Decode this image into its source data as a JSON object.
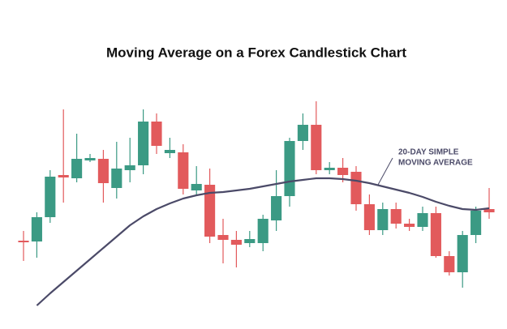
{
  "chart_data": {
    "type": "candlestick",
    "title": "Moving Average on a Forex Candlestick Chart",
    "annotation": [
      "20-DAY SIMPLE",
      "MOVING AVERAGE"
    ],
    "x": [
      0,
      1,
      2,
      3,
      4,
      5,
      6,
      7,
      8,
      9,
      10,
      11,
      12,
      13,
      14,
      15,
      16,
      17,
      18,
      19,
      20,
      21,
      22,
      23,
      24,
      25,
      26,
      27,
      28,
      29,
      30,
      31,
      32,
      33,
      34,
      35
    ],
    "xlim": [
      -0.5,
      35.5
    ],
    "ylim": [
      0,
      400
    ],
    "up_color": "#3b9a84",
    "down_color": "#e25a5c",
    "open": [
      103,
      102,
      132,
      184,
      180,
      202,
      204,
      168,
      190,
      196,
      250,
      211,
      212,
      165,
      172,
      110,
      104,
      100,
      100,
      128,
      158,
      226,
      246,
      190,
      193,
      188,
      148,
      116,
      142,
      124,
      120,
      137,
      84,
      64,
      110,
      142
    ],
    "close": [
      101,
      132,
      182,
      181,
      204,
      205,
      174,
      192,
      196,
      250,
      220,
      215,
      167,
      173,
      108,
      104,
      98,
      105,
      130,
      158,
      226,
      246,
      190,
      193,
      184,
      148,
      116,
      142,
      124,
      120,
      137,
      84,
      64,
      110,
      140,
      138
    ],
    "high": [
      115,
      138,
      190,
      265,
      235,
      210,
      215,
      225,
      230,
      265,
      260,
      230,
      222,
      195,
      192,
      130,
      115,
      115,
      135,
      190,
      230,
      260,
      275,
      200,
      205,
      195,
      160,
      150,
      150,
      130,
      145,
      145,
      90,
      115,
      145,
      168
    ],
    "low": [
      78,
      82,
      125,
      150,
      175,
      200,
      150,
      155,
      175,
      185,
      210,
      205,
      160,
      160,
      100,
      75,
      70,
      95,
      90,
      115,
      145,
      215,
      185,
      185,
      175,
      140,
      110,
      110,
      118,
      115,
      115,
      82,
      60,
      45,
      100,
      130
    ],
    "moving_average": {
      "color": "#4b4a68",
      "values": [
        null,
        23,
        38,
        52,
        66,
        80,
        94,
        108,
        122,
        133,
        142,
        149,
        155,
        159,
        162,
        163,
        165,
        167,
        170,
        173,
        176,
        178,
        180,
        180,
        179,
        177,
        174,
        170,
        166,
        162,
        157,
        151,
        146,
        142,
        141,
        143
      ]
    }
  }
}
